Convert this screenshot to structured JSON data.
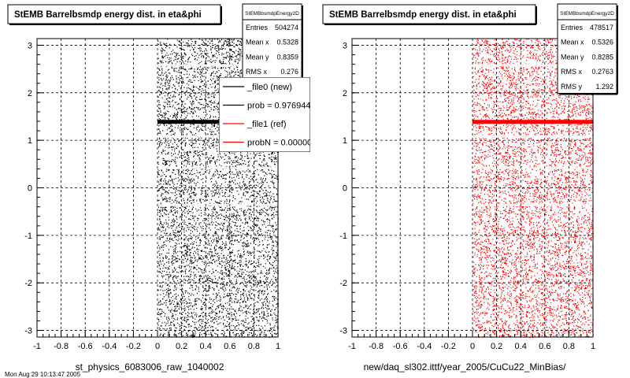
{
  "footer_text": "Mon Aug 29 10:13:47 2005",
  "colors": {
    "new": "#000000",
    "ref": "#ff0000"
  },
  "chart_data": [
    {
      "type": "scatter",
      "title": "StEMB Barrelbsmdp energy dist. in eta&phi",
      "xlabel": "st_physics_6083006_raw_1040002",
      "xlim": [
        -1,
        1
      ],
      "ylim": [
        -3.14,
        3.14
      ],
      "x_ticks": [
        "-1",
        "-0.8",
        "-0.6",
        "-0.4",
        "-0.2",
        "0",
        "0.2",
        "0.4",
        "0.6",
        "0.8",
        "1"
      ],
      "y_ticks": [
        "-3",
        "-2",
        "-1",
        "0",
        "1",
        "2",
        "3"
      ],
      "grid": true,
      "color": "#000000",
      "data_region": {
        "x": [
          0,
          1
        ],
        "y": [
          -3.14,
          3.14
        ]
      },
      "dense_band_eta": 1.38,
      "stats": {
        "name": "StEMBbsmdpEnergy2D",
        "rows": [
          {
            "label": "Entries",
            "value": "504274"
          },
          {
            "label": "Mean x",
            "value": "0.5328"
          },
          {
            "label": "Mean y",
            "value": "0.8359"
          },
          {
            "label": "RMS x",
            "value": "0.276"
          }
        ]
      },
      "legend": {
        "position": "top-right",
        "entries": [
          {
            "label": "_file0 (new)",
            "color": "#000000"
          },
          {
            "label": "prob = 0.976944",
            "color": "#000000"
          },
          {
            "label": "_file1 (ref)",
            "color": "#ff0000"
          },
          {
            "label": "probN = 0.000000",
            "color": "#ff0000"
          }
        ]
      }
    },
    {
      "type": "scatter",
      "title": "StEMB Barrelbsmdp energy dist. in eta&phi",
      "xlabel": "new/daq_sl302.ittf/year_2005/CuCu22_MinBias/",
      "xlim": [
        -1,
        1
      ],
      "ylim": [
        -3.14,
        3.14
      ],
      "x_ticks": [
        "-1",
        "-0.8",
        "-0.6",
        "-0.4",
        "-0.2",
        "0",
        "0.2",
        "0.4",
        "0.6",
        "0.8",
        "1"
      ],
      "y_ticks": [
        "-3",
        "-2",
        "-1",
        "0",
        "1",
        "2",
        "3"
      ],
      "grid": true,
      "color": "#ff0000",
      "data_region": {
        "x": [
          0,
          1
        ],
        "y": [
          -3.14,
          3.14
        ]
      },
      "dense_band_eta": 1.38,
      "stats": {
        "name": "StEMBbsmdpEnergy2D",
        "rows": [
          {
            "label": "Entries",
            "value": "478517"
          },
          {
            "label": "Mean x",
            "value": "0.5326"
          },
          {
            "label": "Mean y",
            "value": "0.8285"
          },
          {
            "label": "RMS x",
            "value": "0.2763"
          },
          {
            "label": "RMS y",
            "value": "1.292"
          }
        ]
      }
    }
  ]
}
